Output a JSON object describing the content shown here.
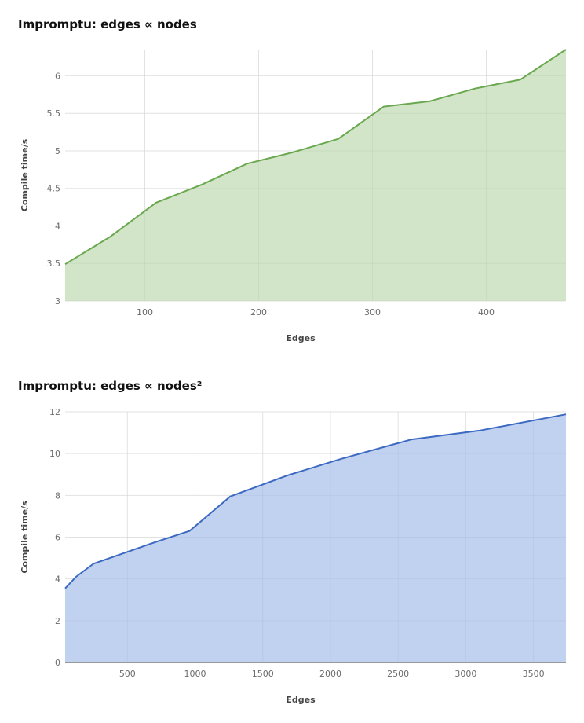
{
  "chart_data": [
    {
      "type": "area",
      "title": "Impromptu: edges ∝ nodes",
      "xlabel": "Edges",
      "ylabel": "Compile time/s",
      "xlim": [
        30,
        470
      ],
      "ylim": [
        3,
        6.35
      ],
      "xticks": [
        100,
        200,
        300,
        400
      ],
      "yticks": [
        3,
        3.5,
        4,
        4.5,
        5,
        5.5,
        6
      ],
      "grid": true,
      "colors": {
        "line": "#6aa84f",
        "fill": "#d2e5c8"
      },
      "series": [
        {
          "x": [
            30,
            70,
            110,
            150,
            190,
            230,
            270,
            310,
            350,
            390,
            430,
            470
          ],
          "y": [
            3.49,
            3.86,
            4.31,
            4.55,
            4.83,
            4.98,
            5.16,
            5.59,
            5.66,
            5.83,
            5.95,
            6.35
          ]
        }
      ]
    },
    {
      "type": "area",
      "title": "Impromptu: edges ∝ nodes²",
      "xlabel": "Edges",
      "ylabel": "Compile time/s",
      "xlim": [
        40,
        3740
      ],
      "ylim": [
        0,
        12
      ],
      "xticks": [
        500,
        1000,
        1500,
        2000,
        2500,
        3000,
        3500
      ],
      "yticks": [
        0,
        2,
        4,
        6,
        8,
        10,
        12
      ],
      "grid": true,
      "colors": {
        "line": "#3c69c1",
        "fill": "#c1d1f0"
      },
      "series": [
        {
          "x": [
            40,
            120,
            250,
            700,
            960,
            1260,
            1680,
            2080,
            2600,
            3100,
            3740
          ],
          "y": [
            3.55,
            4.1,
            4.73,
            5.75,
            6.3,
            7.95,
            8.95,
            9.75,
            10.68,
            11.1,
            11.88
          ]
        }
      ]
    }
  ]
}
